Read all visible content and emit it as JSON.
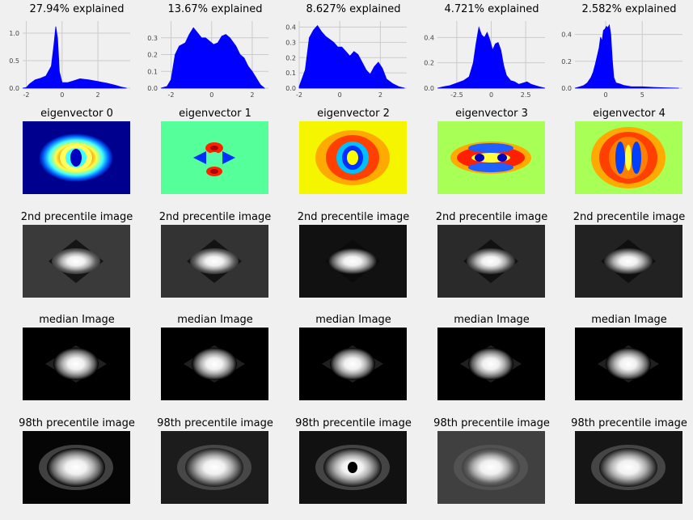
{
  "chart_data": {
    "type": "figure-grid",
    "columns": 5,
    "kde_panels": [
      {
        "title": "27.94% explained",
        "xlim": [
          -2.2,
          3.8
        ],
        "ylim": [
          0,
          1.22
        ],
        "xticks": [
          -2,
          0,
          2
        ],
        "yticks": [
          0.0,
          0.5,
          1.0
        ],
        "curve": [
          [
            -2.2,
            0
          ],
          [
            -2,
            0.01
          ],
          [
            -1.8,
            0.08
          ],
          [
            -1.5,
            0.15
          ],
          [
            -1.2,
            0.18
          ],
          [
            -0.9,
            0.22
          ],
          [
            -0.6,
            0.4
          ],
          [
            -0.45,
            0.8
          ],
          [
            -0.35,
            1.12
          ],
          [
            -0.25,
            0.9
          ],
          [
            -0.15,
            0.3
          ],
          [
            0,
            0.1
          ],
          [
            0.3,
            0.1
          ],
          [
            0.6,
            0.13
          ],
          [
            1.0,
            0.17
          ],
          [
            1.5,
            0.15
          ],
          [
            2.0,
            0.12
          ],
          [
            2.5,
            0.09
          ],
          [
            3.0,
            0.05
          ],
          [
            3.3,
            0.02
          ],
          [
            3.6,
            0
          ]
        ]
      },
      {
        "title": "13.67% explained",
        "xlim": [
          -2.5,
          2.8
        ],
        "ylim": [
          0,
          0.4
        ],
        "xticks": [
          -2,
          0,
          2
        ],
        "yticks": [
          0.0,
          0.1,
          0.2,
          0.3
        ],
        "curve": [
          [
            -2.5,
            0
          ],
          [
            -2.2,
            0.01
          ],
          [
            -2.0,
            0.05
          ],
          [
            -1.8,
            0.2
          ],
          [
            -1.6,
            0.25
          ],
          [
            -1.3,
            0.27
          ],
          [
            -1.1,
            0.32
          ],
          [
            -0.9,
            0.36
          ],
          [
            -0.7,
            0.33
          ],
          [
            -0.5,
            0.3
          ],
          [
            -0.3,
            0.3
          ],
          [
            -0.1,
            0.28
          ],
          [
            0.1,
            0.26
          ],
          [
            0.3,
            0.27
          ],
          [
            0.5,
            0.31
          ],
          [
            0.7,
            0.32
          ],
          [
            0.9,
            0.3
          ],
          [
            1.2,
            0.25
          ],
          [
            1.4,
            0.2
          ],
          [
            1.6,
            0.18
          ],
          [
            1.8,
            0.13
          ],
          [
            2.0,
            0.1
          ],
          [
            2.2,
            0.06
          ],
          [
            2.4,
            0.02
          ],
          [
            2.6,
            0
          ]
        ]
      },
      {
        "title": "8.627% explained",
        "xlim": [
          -2.0,
          3.3
        ],
        "ylim": [
          0,
          0.44
        ],
        "xticks": [
          -2,
          0,
          2
        ],
        "yticks": [
          0.0,
          0.1,
          0.2,
          0.3,
          0.4
        ],
        "curve": [
          [
            -2.0,
            0.01
          ],
          [
            -1.7,
            0.12
          ],
          [
            -1.5,
            0.33
          ],
          [
            -1.3,
            0.38
          ],
          [
            -1.1,
            0.41
          ],
          [
            -0.9,
            0.37
          ],
          [
            -0.7,
            0.34
          ],
          [
            -0.5,
            0.32
          ],
          [
            -0.3,
            0.3
          ],
          [
            -0.1,
            0.27
          ],
          [
            0.1,
            0.27
          ],
          [
            0.3,
            0.24
          ],
          [
            0.5,
            0.21
          ],
          [
            0.7,
            0.24
          ],
          [
            0.9,
            0.22
          ],
          [
            1.1,
            0.17
          ],
          [
            1.3,
            0.12
          ],
          [
            1.5,
            0.09
          ],
          [
            1.7,
            0.14
          ],
          [
            1.9,
            0.17
          ],
          [
            2.1,
            0.13
          ],
          [
            2.3,
            0.06
          ],
          [
            2.6,
            0.03
          ],
          [
            2.9,
            0.01
          ],
          [
            3.2,
            0
          ]
        ]
      },
      {
        "title": "4.721% explained",
        "xlim": [
          -3.9,
          3.9
        ],
        "ylim": [
          0,
          0.53
        ],
        "xticks": [
          -2.5,
          0.0,
          2.5
        ],
        "yticks": [
          0.0,
          0.2,
          0.4
        ],
        "curve": [
          [
            -3.9,
            0
          ],
          [
            -3.5,
            0.01
          ],
          [
            -3,
            0.02
          ],
          [
            -2.5,
            0.04
          ],
          [
            -2,
            0.06
          ],
          [
            -1.6,
            0.09
          ],
          [
            -1.3,
            0.2
          ],
          [
            -1.1,
            0.35
          ],
          [
            -0.9,
            0.48
          ],
          [
            -0.7,
            0.42
          ],
          [
            -0.5,
            0.4
          ],
          [
            -0.3,
            0.44
          ],
          [
            -0.1,
            0.38
          ],
          [
            0.1,
            0.3
          ],
          [
            0.3,
            0.35
          ],
          [
            0.5,
            0.36
          ],
          [
            0.7,
            0.3
          ],
          [
            0.9,
            0.18
          ],
          [
            1.1,
            0.1
          ],
          [
            1.4,
            0.06
          ],
          [
            1.7,
            0.05
          ],
          [
            2.0,
            0.03
          ],
          [
            2.3,
            0.04
          ],
          [
            2.6,
            0.05
          ],
          [
            2.9,
            0.03
          ],
          [
            3.2,
            0.02
          ],
          [
            3.5,
            0.01
          ],
          [
            3.9,
            0
          ]
        ]
      },
      {
        "title": "2.582% explained",
        "xlim": [
          -4.2,
          10.5
        ],
        "ylim": [
          0,
          0.5
        ],
        "xticks": [
          0,
          5
        ],
        "yticks": [
          0.0,
          0.2,
          0.4
        ],
        "curve": [
          [
            -4.2,
            0
          ],
          [
            -3.5,
            0.01
          ],
          [
            -3,
            0.02
          ],
          [
            -2.5,
            0.04
          ],
          [
            -2,
            0.08
          ],
          [
            -1.7,
            0.12
          ],
          [
            -1.4,
            0.18
          ],
          [
            -1.1,
            0.25
          ],
          [
            -0.9,
            0.3
          ],
          [
            -0.7,
            0.38
          ],
          [
            -0.5,
            0.35
          ],
          [
            -0.3,
            0.43
          ],
          [
            -0.1,
            0.44
          ],
          [
            0.1,
            0.46
          ],
          [
            0.3,
            0.45
          ],
          [
            0.5,
            0.47
          ],
          [
            0.7,
            0.4
          ],
          [
            0.9,
            0.22
          ],
          [
            1.1,
            0.08
          ],
          [
            1.4,
            0.04
          ],
          [
            2,
            0.03
          ],
          [
            2.5,
            0.02
          ],
          [
            3.5,
            0.01
          ],
          [
            5,
            0.01
          ],
          [
            6.5,
            0.006
          ],
          [
            8,
            0.003
          ],
          [
            10,
            0
          ]
        ]
      }
    ],
    "rows": [
      {
        "label": "eigenvector",
        "titles": [
          "eigenvector 0",
          "eigenvector 1",
          "eigenvector 2",
          "eigenvector 3",
          "eigenvector 4"
        ]
      },
      {
        "label": "2nd precentile image",
        "titles": [
          "2nd precentile image",
          "2nd precentile image",
          "2nd precentile image",
          "2nd precentile image",
          "2nd precentile image"
        ]
      },
      {
        "label": "median Image",
        "titles": [
          "median Image",
          "median Image",
          "median Image",
          "median Image",
          "median Image"
        ]
      },
      {
        "label": "98th precentile image",
        "titles": [
          "98th precentile image",
          "98th precentile image",
          "98th precentile image",
          "98th precentile image",
          "98th precentile image"
        ]
      }
    ],
    "eigen_backgrounds": [
      "#00008f",
      "#55ff99",
      "#f5f500",
      "#a8ff55",
      "#a8ff55"
    ],
    "gray_backgrounds": {
      "p2": [
        "#3a3a3a",
        "#333333",
        "#111111",
        "#2a2a2a",
        "#222222"
      ],
      "med": [
        "#000000",
        "#000000",
        "#000000",
        "#000000",
        "#000000"
      ],
      "p98": [
        "#050505",
        "#1c1c1c",
        "#111111",
        "#404040",
        "#151515"
      ]
    },
    "fill_color": "#0000ff"
  }
}
